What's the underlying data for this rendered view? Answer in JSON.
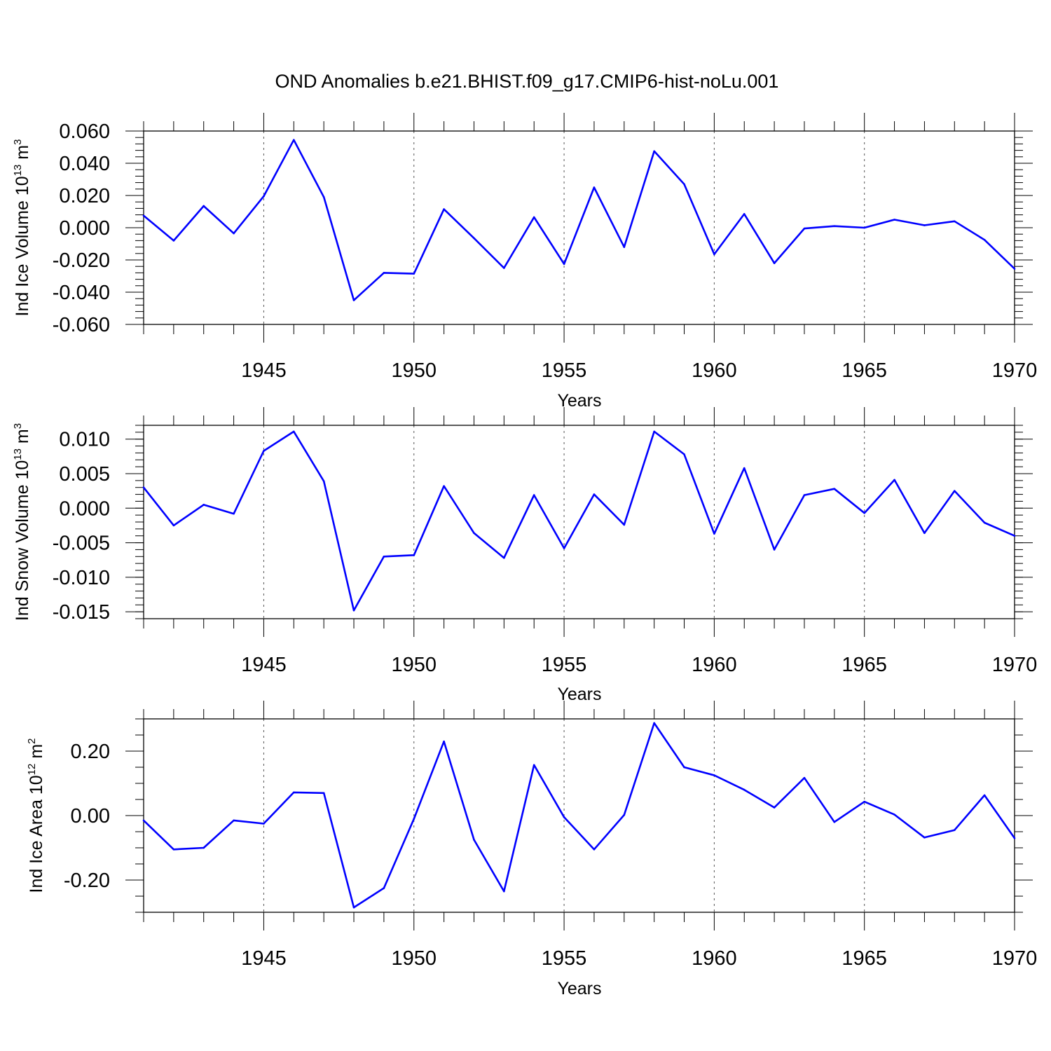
{
  "title": "OND Anomalies b.e21.BHIST.f09_g17.CMIP6-hist-noLu.001",
  "chart_data": [
    {
      "type": "line",
      "ylabel": {
        "main": "Ind Ice Volume 10",
        "exp": "13",
        "unit": " m",
        "unit_exp": "3"
      },
      "xlabel": "Years",
      "xlim": [
        1941,
        1970
      ],
      "ylim": [
        -0.06,
        0.06
      ],
      "yticks": [
        -0.06,
        -0.04,
        -0.02,
        0.0,
        0.02,
        0.04,
        0.06
      ],
      "ytick_labels": [
        "-0.060",
        "-0.040",
        "-0.020",
        "0.000",
        "0.020",
        "0.040",
        "0.060"
      ],
      "y_minor_step": 0.004,
      "xticks": [
        1945,
        1950,
        1955,
        1960,
        1965,
        1970
      ],
      "xtick_labels": [
        "1945",
        "1950",
        "1955",
        "1960",
        "1965",
        "1970"
      ],
      "line_color": "#0000ff",
      "series": [
        {
          "name": "Ind Ice Volume",
          "x": [
            1941,
            1942,
            1943,
            1944,
            1945,
            1946,
            1947,
            1948,
            1949,
            1950,
            1951,
            1952,
            1953,
            1954,
            1955,
            1956,
            1957,
            1958,
            1959,
            1960,
            1961,
            1962,
            1963,
            1964,
            1965,
            1966,
            1967,
            1968,
            1969,
            1970
          ],
          "values": [
            0.0075,
            -0.008,
            0.0135,
            -0.0035,
            0.0195,
            0.0545,
            0.019,
            -0.045,
            -0.028,
            -0.0285,
            0.0115,
            -0.0065,
            -0.025,
            0.0065,
            -0.0225,
            0.025,
            -0.012,
            0.0475,
            0.027,
            -0.0165,
            0.0085,
            -0.022,
            -0.0005,
            0.001,
            0.0,
            0.005,
            0.0015,
            0.004,
            -0.0075,
            -0.0255
          ]
        }
      ]
    },
    {
      "type": "line",
      "ylabel": {
        "main": "Ind Snow Volume 10",
        "exp": "13",
        "unit": " m",
        "unit_exp": "3"
      },
      "xlabel": "Years",
      "xlim": [
        1941,
        1970
      ],
      "ylim": [
        -0.016,
        0.012
      ],
      "yticks": [
        -0.015,
        -0.01,
        -0.005,
        0.0,
        0.005,
        0.01
      ],
      "ytick_labels": [
        "-0.015",
        "-0.010",
        "-0.005",
        "0.000",
        "0.005",
        "0.010"
      ],
      "y_minor_step": 0.001,
      "xticks": [
        1945,
        1950,
        1955,
        1960,
        1965,
        1970
      ],
      "xtick_labels": [
        "1945",
        "1950",
        "1955",
        "1960",
        "1965",
        "1970"
      ],
      "line_color": "#0000ff",
      "series": [
        {
          "name": "Ind Snow Volume",
          "x": [
            1941,
            1942,
            1943,
            1944,
            1945,
            1946,
            1947,
            1948,
            1949,
            1950,
            1951,
            1952,
            1953,
            1954,
            1955,
            1956,
            1957,
            1958,
            1959,
            1960,
            1961,
            1962,
            1963,
            1964,
            1965,
            1966,
            1967,
            1968,
            1969,
            1970
          ],
          "values": [
            0.003,
            -0.0025,
            0.0005,
            -0.0008,
            0.0083,
            0.0111,
            0.0039,
            -0.0148,
            -0.007,
            -0.0068,
            0.0032,
            -0.0036,
            -0.0072,
            0.0019,
            -0.0058,
            0.002,
            -0.0024,
            0.0111,
            0.0078,
            -0.0037,
            0.0058,
            -0.006,
            0.0019,
            0.0028,
            -0.0007,
            0.0041,
            -0.0036,
            0.0025,
            -0.0021,
            -0.004
          ]
        }
      ]
    },
    {
      "type": "line",
      "ylabel": {
        "main": "Ind Ice Area 10",
        "exp": "12",
        "unit": " m",
        "unit_exp": "2"
      },
      "xlabel": "Years",
      "xlim": [
        1941,
        1970
      ],
      "ylim": [
        -0.3,
        0.3
      ],
      "yticks": [
        -0.2,
        0.0,
        0.2
      ],
      "ytick_labels": [
        "-0.20",
        "0.00",
        "0.20"
      ],
      "y_minor_step": 0.05,
      "xticks": [
        1945,
        1950,
        1955,
        1960,
        1965,
        1970
      ],
      "xtick_labels": [
        "1945",
        "1950",
        "1955",
        "1960",
        "1965",
        "1970"
      ],
      "line_color": "#0000ff",
      "series": [
        {
          "name": "Ind Ice Area",
          "x": [
            1941,
            1942,
            1943,
            1944,
            1945,
            1946,
            1947,
            1948,
            1949,
            1950,
            1951,
            1952,
            1953,
            1954,
            1955,
            1956,
            1957,
            1958,
            1959,
            1960,
            1961,
            1962,
            1963,
            1964,
            1965,
            1966,
            1967,
            1968,
            1969,
            1970
          ],
          "values": [
            -0.015,
            -0.105,
            -0.1,
            -0.015,
            -0.025,
            0.072,
            0.07,
            -0.285,
            -0.225,
            -0.01,
            0.23,
            -0.075,
            -0.235,
            0.157,
            -0.005,
            -0.105,
            0.002,
            0.287,
            0.15,
            0.125,
            0.08,
            0.025,
            0.117,
            -0.02,
            0.043,
            0.003,
            -0.068,
            -0.045,
            0.063,
            -0.07
          ]
        }
      ]
    }
  ]
}
